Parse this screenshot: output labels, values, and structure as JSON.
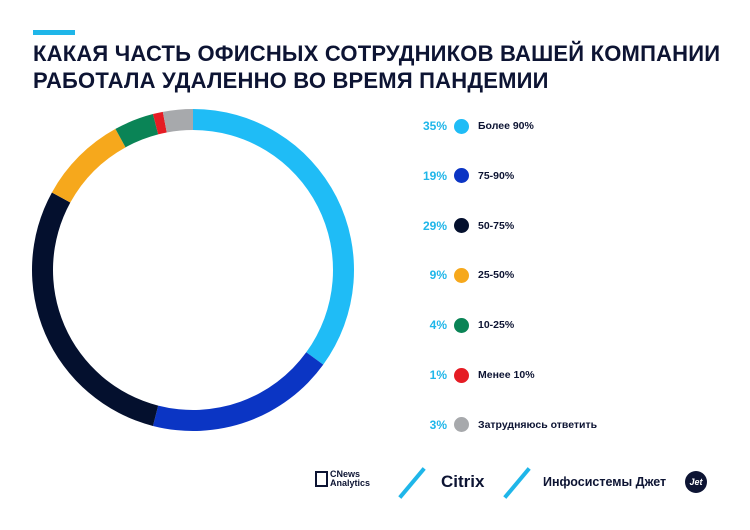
{
  "header": {
    "title_line1": "КАКАЯ ЧАСТЬ ОФИСНЫХ СОТРУДНИКОВ ВАШЕЙ КОМПАНИИ",
    "title_line2": "РАБОТАЛА УДАЛЕННО ВО ВРЕМЯ ПАНДЕМИИ"
  },
  "chart_data": {
    "type": "pie",
    "variant": "donut",
    "title": "Какая часть офисных сотрудников вашей компании работала удаленно во время пандемии",
    "legend_position": "right",
    "slices": [
      {
        "label": "Более 90%",
        "value": 35,
        "value_label": "35%",
        "color": "#1fbcf6"
      },
      {
        "label": "75-90%",
        "value": 19,
        "value_label": "19%",
        "color": "#0b35c4"
      },
      {
        "label": "50-75%",
        "value": 29,
        "value_label": "29%",
        "color": "#04102e"
      },
      {
        "label": "25-50%",
        "value": 9,
        "value_label": "9%",
        "color": "#f6a81c"
      },
      {
        "label": "10-25%",
        "value": 4,
        "value_label": "4%",
        "color": "#0a8456"
      },
      {
        "label": "Менее 10%",
        "value": 1,
        "value_label": "1%",
        "color": "#e51c24"
      },
      {
        "label": "Затрудняюсь ответить",
        "value": 3,
        "value_label": "3%",
        "color": "#a7a9ac"
      }
    ]
  },
  "footer": {
    "cnews_line1": "CNews",
    "cnews_line2": "Analytics",
    "citrix": "Citrix",
    "infosys": "Инфосистемы Джет",
    "jet_logo_text": "Jet"
  },
  "colors": {
    "accent": "#1fb6e9",
    "text": "#0d1433"
  }
}
